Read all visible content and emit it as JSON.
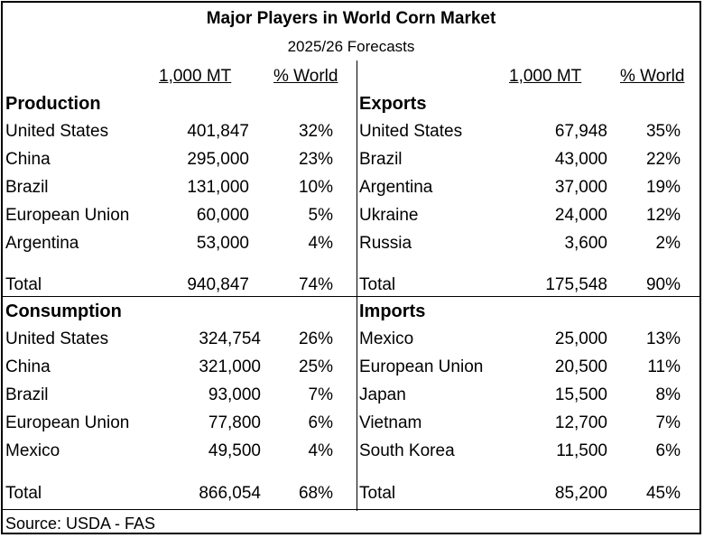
{
  "title": "Major Players in World Corn Market",
  "subtitle": "2025/26 Forecasts",
  "column_headers": {
    "mt": "1,000 MT",
    "pct": "% World"
  },
  "production": {
    "heading": "Production",
    "rows": [
      {
        "country": "United States",
        "mt": "401,847",
        "pct": "32%"
      },
      {
        "country": "China",
        "mt": "295,000",
        "pct": "23%"
      },
      {
        "country": "Brazil",
        "mt": "131,000",
        "pct": "10%"
      },
      {
        "country": "European Union",
        "mt": "60,000",
        "pct": "5%"
      },
      {
        "country": "Argentina",
        "mt": "53,000",
        "pct": "4%"
      }
    ],
    "total": {
      "label": "Total",
      "mt": "940,847",
      "pct": "74%"
    }
  },
  "exports": {
    "heading": "Exports",
    "rows": [
      {
        "country": "United States",
        "mt": "67,948",
        "pct": "35%"
      },
      {
        "country": "Brazil",
        "mt": "43,000",
        "pct": "22%"
      },
      {
        "country": "Argentina",
        "mt": "37,000",
        "pct": "19%"
      },
      {
        "country": "Ukraine",
        "mt": "24,000",
        "pct": "12%"
      },
      {
        "country": "Russia",
        "mt": "3,600",
        "pct": "2%"
      }
    ],
    "total": {
      "label": "Total",
      "mt": "175,548",
      "pct": "90%"
    }
  },
  "consumption": {
    "heading": "Consumption",
    "rows": [
      {
        "country": "United States",
        "mt": "324,754",
        "pct": "26%"
      },
      {
        "country": "China",
        "mt": "321,000",
        "pct": "25%"
      },
      {
        "country": "Brazil",
        "mt": "93,000",
        "pct": "7%"
      },
      {
        "country": "European Union",
        "mt": "77,800",
        "pct": "6%"
      },
      {
        "country": "Mexico",
        "mt": "49,500",
        "pct": "4%"
      }
    ],
    "total": {
      "label": "Total",
      "mt": "866,054",
      "pct": "68%"
    }
  },
  "imports": {
    "heading": "Imports",
    "rows": [
      {
        "country": "Mexico",
        "mt": "25,000",
        "pct": "13%"
      },
      {
        "country": "European Union",
        "mt": "20,500",
        "pct": "11%"
      },
      {
        "country": "Japan",
        "mt": "15,500",
        "pct": "8%"
      },
      {
        "country": "Vietnam",
        "mt": "12,700",
        "pct": "7%"
      },
      {
        "country": "South Korea",
        "mt": "11,500",
        "pct": "6%"
      }
    ],
    "total": {
      "label": "Total",
      "mt": "85,200",
      "pct": "45%"
    }
  },
  "source": "Source: USDA - FAS"
}
